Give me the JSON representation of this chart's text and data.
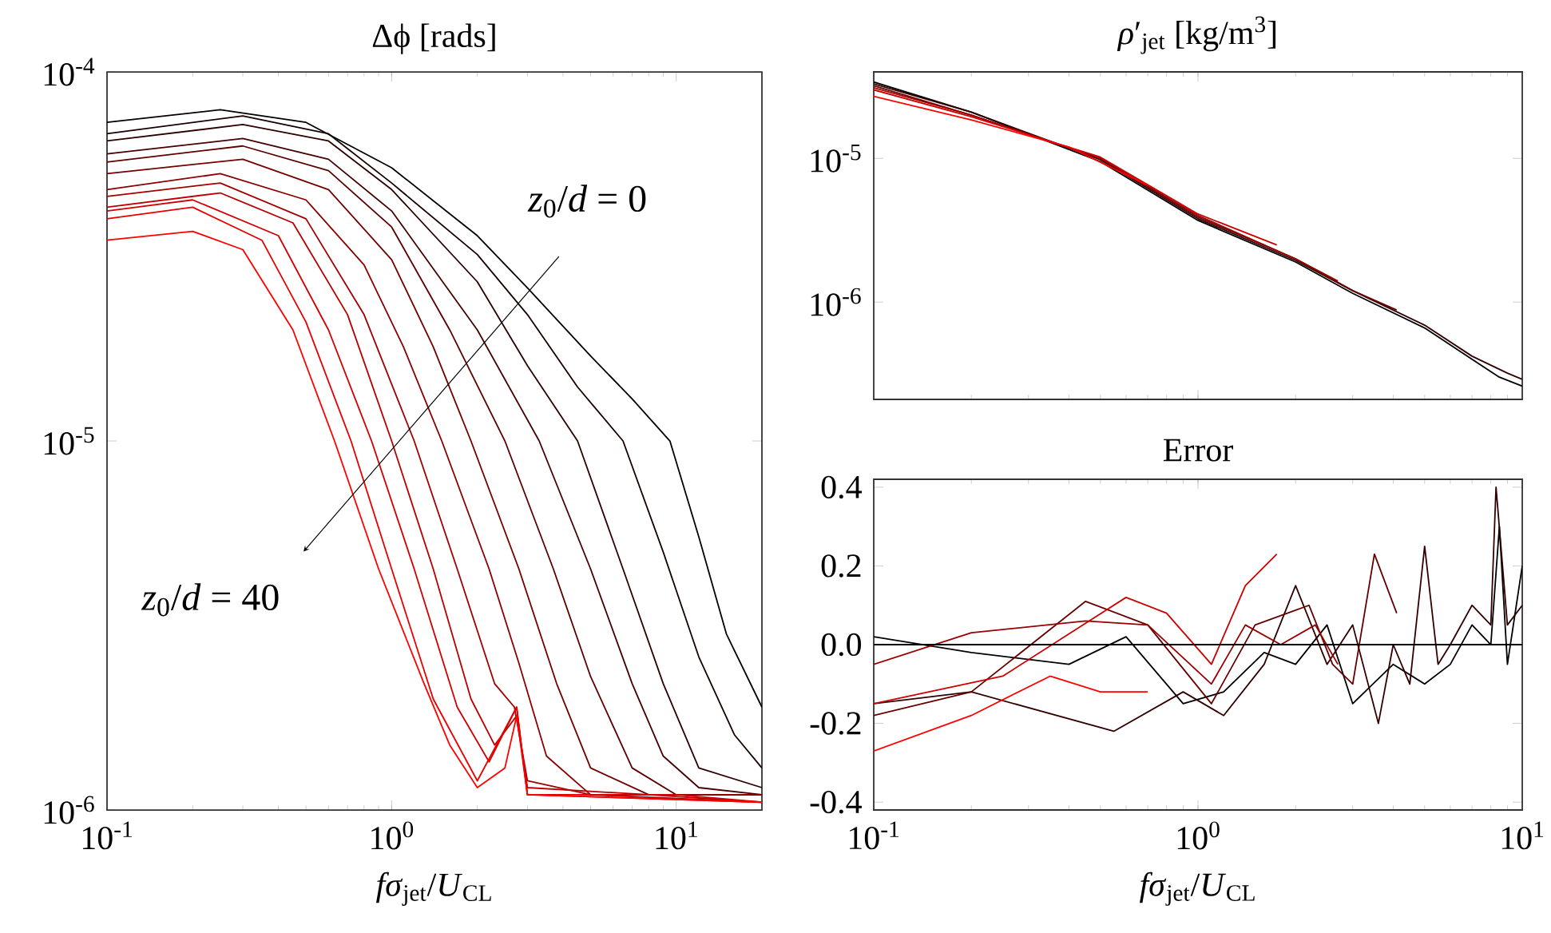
{
  "chart_data": [
    {
      "type": "line",
      "title": "Δϕ [rads]",
      "xlabel": "*fσ*$_{jet}$/*U*$_{CL}$",
      "log": "xy",
      "xlim": [
        0.1,
        20
      ],
      "ylim": [
        1e-06,
        0.0001
      ],
      "xticks": [
        {
          "value": 0.1,
          "label": "10$^{-1}$"
        },
        {
          "value": 1,
          "label": "10$^{0}$"
        },
        {
          "value": 10,
          "label": "10$^{1}$"
        }
      ],
      "yticks": [
        {
          "value": 1e-06,
          "label": "10$^{-6}$"
        },
        {
          "value": 1e-05,
          "label": "10$^{-5}$"
        },
        {
          "value": 0.0001,
          "label": "10$^{-4}$"
        }
      ],
      "grid": false,
      "marker": "none",
      "line_style": "solid",
      "annotations": [
        "*z*$_{0}$/*d* = 0",
        "*z*$_{0}$/*d* = 40"
      ],
      "series": [
        {
          "color": "#000000",
          "x": [
            0.1,
            0.25,
            0.5,
            1,
            2,
            3,
            5,
            7,
            9.5,
            12,
            15,
            20
          ],
          "values": [
            7.3e-05,
            7.9e-05,
            7.3e-05,
            5.5e-05,
            3.6e-05,
            2.6e-05,
            1.7e-05,
            1.3e-05,
            1e-05,
            5.5e-06,
            3e-06,
            1.9e-06
          ]
        },
        {
          "color": "#170000",
          "x": [
            0.1,
            0.3,
            0.6,
            1,
            2,
            3,
            4.5,
            6.5,
            9,
            12,
            16,
            20
          ],
          "values": [
            6.8e-05,
            7.6e-05,
            6.8e-05,
            5e-05,
            3.2e-05,
            2.2e-05,
            1.4e-05,
            1e-05,
            5e-06,
            2.6e-06,
            1.6e-06,
            1.3e-06
          ]
        },
        {
          "color": "#2e0000",
          "x": [
            0.1,
            0.3,
            0.6,
            1,
            2,
            3,
            4.5,
            6.5,
            9,
            12,
            20
          ],
          "values": [
            6.5e-05,
            7.2e-05,
            6.5e-05,
            4.8e-05,
            2.7e-05,
            1.6e-05,
            1e-05,
            4.5e-06,
            2.2e-06,
            1.3e-06,
            1.15e-06
          ]
        },
        {
          "color": "#450000",
          "x": [
            0.1,
            0.3,
            0.6,
            1,
            2,
            3.3,
            5,
            7,
            9,
            12,
            20
          ],
          "values": [
            6e-05,
            6.6e-05,
            5.8e-05,
            4.2e-05,
            2e-05,
            1e-05,
            4.5e-06,
            2.2e-06,
            1.4e-06,
            1.15e-06,
            1.1e-06
          ]
        },
        {
          "color": "#5d0000",
          "x": [
            0.1,
            0.3,
            0.6,
            1,
            1.6,
            2.5,
            3.7,
            5,
            7,
            10,
            20
          ],
          "values": [
            5.7e-05,
            6.3e-05,
            5.4e-05,
            3.8e-05,
            2e-05,
            1e-05,
            4.5e-06,
            2.3e-06,
            1.3e-06,
            1.1e-06,
            1.1e-06
          ]
        },
        {
          "color": "#740000",
          "x": [
            0.1,
            0.3,
            0.6,
            1,
            1.4,
            1.9,
            2.8,
            3.8,
            5,
            8,
            20
          ],
          "values": [
            5.3e-05,
            5.8e-05,
            4.8e-05,
            3.1e-05,
            1.8e-05,
            1e-05,
            4.5e-06,
            2.2e-06,
            1.3e-06,
            1.1e-06,
            1.1e-06
          ]
        },
        {
          "color": "#8b0000",
          "x": [
            0.1,
            0.25,
            0.5,
            0.8,
            1.1,
            1.5,
            2.2,
            2.8,
            3.5,
            5,
            20
          ],
          "values": [
            4.8e-05,
            5.3e-05,
            4.5e-05,
            3e-05,
            1.8e-05,
            1e-05,
            4.5e-06,
            2.5e-06,
            1.4e-06,
            1.1e-06,
            1.1e-06
          ]
        },
        {
          "color": "#a20000",
          "x": [
            0.1,
            0.25,
            0.5,
            0.8,
            1.2,
            1.7,
            2.3,
            2.7,
            3,
            5,
            20
          ],
          "values": [
            4.6e-05,
            5e-05,
            4e-05,
            2.2e-05,
            1e-05,
            4.5e-06,
            2.2e-06,
            1.9e-06,
            1.2e-06,
            1.1e-06,
            1.05e-06
          ]
        },
        {
          "color": "#b90000",
          "x": [
            0.1,
            0.25,
            0.45,
            0.7,
            1,
            1.4,
            1.9,
            2.3,
            2.75,
            3,
            8,
            20
          ],
          "values": [
            4.3e-05,
            4.7e-05,
            3.9e-05,
            2.2e-05,
            1e-05,
            4.5e-06,
            2e-06,
            1.5e-06,
            1.8e-06,
            1.15e-06,
            1.1e-06,
            1.05e-06
          ]
        },
        {
          "color": "#d10000",
          "x": [
            0.1,
            0.2,
            0.4,
            0.6,
            0.85,
            1.2,
            1.7,
            2.2,
            2.75,
            3,
            10,
            20
          ],
          "values": [
            4.2e-05,
            4.5e-05,
            3.6e-05,
            2e-05,
            1e-05,
            4.5e-06,
            1.9e-06,
            1.35e-06,
            1.9e-06,
            1.1e-06,
            1.1e-06,
            1.05e-06
          ]
        },
        {
          "color": "#e80000",
          "x": [
            0.1,
            0.2,
            0.35,
            0.5,
            0.72,
            1,
            1.4,
            2,
            2.75,
            3,
            20
          ],
          "values": [
            4e-05,
            4.3e-05,
            3.5e-05,
            2.1e-05,
            1e-05,
            4.5e-06,
            2e-06,
            1.2e-06,
            1.9e-06,
            1.1e-06,
            1.05e-06
          ]
        },
        {
          "color": "#ff0000",
          "x": [
            0.1,
            0.2,
            0.3,
            0.45,
            0.63,
            0.9,
            1.3,
            1.6,
            2,
            2.5,
            2.75,
            3,
            20
          ],
          "values": [
            3.5e-05,
            3.7e-05,
            3.3e-05,
            2e-05,
            1e-05,
            4.5e-06,
            2.2e-06,
            1.5e-06,
            1.15e-06,
            1.3e-06,
            1.8e-06,
            1.1e-06,
            1.05e-06
          ]
        }
      ]
    },
    {
      "type": "line",
      "title": "*ρ*′$_{jet}$ [kg/m$^{3}$]",
      "log": "xy",
      "xlim": [
        0.1,
        10
      ],
      "ylim": [
        2.1e-07,
        4e-05
      ],
      "tick_labels": "y",
      "xticks": [
        0.1,
        1,
        10
      ],
      "yticks": [
        {
          "value": 1e-06,
          "label": "10$^{-6}$"
        },
        {
          "value": 1e-05,
          "label": "10$^{-5}$"
        }
      ],
      "grid": false,
      "marker": "none",
      "line_style": "solid",
      "series": [
        {
          "color": "#000000",
          "x": [
            0.1,
            0.2,
            0.5,
            1,
            2,
            3,
            5,
            7,
            8.5,
            10
          ],
          "values": [
            3.4e-05,
            2.1e-05,
            9.5e-06,
            3.7e-06,
            1.9e-06,
            1.15e-06,
            6.6e-07,
            4e-07,
            3e-07,
            2.6e-07
          ]
        },
        {
          "color": "#330000",
          "x": [
            0.1,
            0.2,
            0.5,
            1,
            2,
            3,
            5,
            7,
            9,
            10
          ],
          "values": [
            3.3e-05,
            2.1e-05,
            9.8e-06,
            3.8e-06,
            1.95e-06,
            1.2e-06,
            6.9e-07,
            4.2e-07,
            3.2e-07,
            2.9e-07
          ]
        },
        {
          "color": "#660000",
          "x": [
            0.1,
            0.2,
            0.5,
            1,
            2,
            3,
            4.1
          ],
          "values": [
            3.2e-05,
            2e-05,
            1e-05,
            3.9e-06,
            2e-06,
            1.2e-06,
            8.8e-07
          ]
        },
        {
          "color": "#990000",
          "x": [
            0.1,
            0.2,
            0.5,
            1,
            2,
            2.7
          ],
          "values": [
            3.1e-05,
            2e-05,
            1e-05,
            4e-06,
            2e-06,
            1.4e-06
          ]
        },
        {
          "color": "#cc0000",
          "x": [
            0.1,
            0.2,
            0.5,
            1,
            1.75
          ],
          "values": [
            3e-05,
            1.95e-05,
            1.02e-05,
            4.1e-06,
            2.5e-06
          ]
        },
        {
          "color": "#ff0000",
          "x": [
            0.1,
            0.2,
            0.4,
            0.7
          ],
          "values": [
            2.7e-05,
            1.85e-05,
            1.2e-05,
            6.5e-06
          ]
        }
      ]
    },
    {
      "type": "line",
      "title": "Error",
      "xlabel": "*fσ*$_{jet}$/*U*$_{CL}$",
      "log": "x",
      "xlim": [
        0.1,
        10
      ],
      "ylim": [
        -0.42,
        0.42
      ],
      "xticks": [
        {
          "value": 0.1,
          "label": "10$^{-1}$"
        },
        {
          "value": 1,
          "label": "10$^{0}$"
        },
        {
          "value": 10,
          "label": "10$^{1}$"
        }
      ],
      "yticks": [
        {
          "value": -0.4,
          "label": "-0.4"
        },
        {
          "value": -0.2,
          "label": "-0.2"
        },
        {
          "value": 0,
          "label": "0.0"
        },
        {
          "value": 0.2,
          "label": "0.2"
        },
        {
          "value": 0.4,
          "label": "0.4"
        }
      ],
      "grid": false,
      "marker": "none",
      "line_style": "solid",
      "ref_lines": [
        {
          "axis": "y",
          "value": 0,
          "color": "#000000"
        }
      ],
      "series": [
        {
          "color": "#000000",
          "x": [
            0.1,
            0.2,
            0.4,
            0.6,
            0.9,
            1.2,
            1.6,
            2,
            2.5,
            3,
            4,
            5,
            6,
            7,
            8,
            8.5,
            9,
            10
          ],
          "values": [
            0.02,
            -0.02,
            -0.05,
            0.02,
            -0.15,
            -0.12,
            -0.02,
            -0.05,
            0.05,
            -0.15,
            -0.05,
            -0.1,
            -0.05,
            0.05,
            0,
            0.3,
            -0.05,
            0.2
          ]
        },
        {
          "color": "#330000",
          "x": [
            0.1,
            0.2,
            0.55,
            0.9,
            1.2,
            1.6,
            2,
            2.5,
            3,
            3.6,
            4,
            4.5,
            5,
            5.5,
            6,
            7,
            8,
            8.3,
            9,
            10
          ],
          "values": [
            -0.15,
            -0.12,
            -0.22,
            -0.12,
            -0.18,
            -0.05,
            0.15,
            -0.05,
            0.05,
            -0.2,
            0,
            -0.1,
            0.25,
            -0.05,
            0,
            0.1,
            0.05,
            0.4,
            0.05,
            0.1
          ]
        },
        {
          "color": "#660000",
          "x": [
            0.1,
            0.2,
            0.45,
            0.7,
            1.1,
            1.5,
            2.2,
            2.6,
            3,
            3.5,
            4.1
          ],
          "values": [
            -0.18,
            -0.12,
            0.11,
            0.05,
            -0.15,
            0.05,
            0.1,
            -0.05,
            -0.1,
            0.23,
            0.08
          ]
        },
        {
          "color": "#990000",
          "x": [
            0.1,
            0.2,
            0.45,
            0.7,
            1.1,
            1.4,
            1.8,
            2.3,
            2.7
          ],
          "values": [
            -0.05,
            0.03,
            0.06,
            0.05,
            -0.1,
            0.05,
            0,
            0.05,
            -0.05
          ]
        },
        {
          "color": "#cc0000",
          "x": [
            0.1,
            0.25,
            0.6,
            0.8,
            1.1,
            1.4,
            1.75
          ],
          "values": [
            -0.15,
            -0.08,
            0.12,
            0.08,
            -0.05,
            0.15,
            0.23
          ]
        },
        {
          "color": "#ff0000",
          "x": [
            0.1,
            0.2,
            0.35,
            0.5,
            0.7
          ],
          "values": [
            -0.27,
            -0.18,
            -0.08,
            -0.12,
            -0.12
          ]
        }
      ]
    }
  ]
}
